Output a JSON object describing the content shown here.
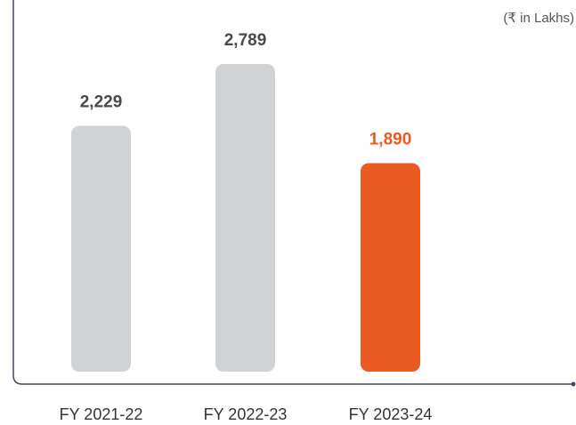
{
  "chart_data": {
    "type": "bar",
    "note": "(₹ in Lakhs)",
    "categories": [
      "FY 2021-22",
      "FY 2022-23",
      "FY 2023-24"
    ],
    "values": [
      2229,
      2789,
      1890
    ],
    "value_labels": [
      "2,229",
      "2,789",
      "1,890"
    ],
    "colors": [
      "#d1d2d4",
      "#d1d2d4",
      "#eb5a23"
    ],
    "label_colors": [
      "#4a4a4a",
      "#4a4a4a",
      "#eb5a23"
    ]
  }
}
